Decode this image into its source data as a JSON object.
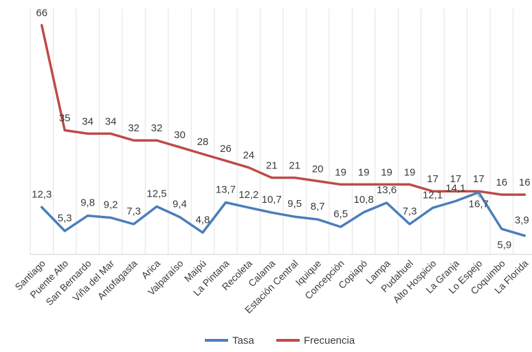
{
  "chart_data": {
    "type": "line",
    "categories": [
      "Santiago",
      "Puente Alto",
      "San Bernardo",
      "Viña del Mar",
      "Antofagasta",
      "Arica",
      "Valparaíso",
      "Maipú",
      "La Pintana",
      "Recoleta",
      "Calama",
      "Estación Central",
      "Iquique",
      "Concepción",
      "Copiapó",
      "Lampa",
      "Pudahuel",
      "Alto Hospicio",
      "La Granja",
      "Lo Espejo",
      "Coquimbo",
      "La Florida"
    ],
    "series": [
      {
        "name": "Tasa",
        "color": "#4a7ebb",
        "values": [
          12.3,
          5.3,
          9.8,
          9.2,
          7.3,
          12.5,
          9.4,
          4.8,
          13.7,
          12.2,
          10.7,
          9.5,
          8.7,
          6.5,
          10.8,
          13.6,
          7.3,
          12.1,
          14.1,
          16.7,
          5.9,
          3.9
        ],
        "labels": [
          "12,3",
          "5,3",
          "9,8",
          "9,2",
          "7,3",
          "12,5",
          "9,4",
          "4,8",
          "13,7",
          "12,2",
          "10,7",
          "9,5",
          "8,7",
          "6,5",
          "10,8",
          "13,6",
          "7,3",
          "12,1",
          "14,1",
          "16,7",
          "5,9",
          "3,9"
        ]
      },
      {
        "name": "Frecuencia",
        "color": "#be4b48",
        "values": [
          66,
          35,
          34,
          34,
          32,
          32,
          30,
          28,
          26,
          24,
          21,
          21,
          20,
          19,
          19,
          19,
          19,
          17,
          17,
          17,
          16,
          16
        ],
        "labels": [
          "66",
          "35",
          "34",
          "34",
          "32",
          "32",
          "30",
          "28",
          "26",
          "24",
          "21",
          "21",
          "20",
          "19",
          "19",
          "19",
          "19",
          "17",
          "17",
          "17",
          "16",
          "16"
        ]
      }
    ],
    "ylim": [
      0,
      70
    ],
    "grid": "vertical",
    "legend": "bottom"
  }
}
